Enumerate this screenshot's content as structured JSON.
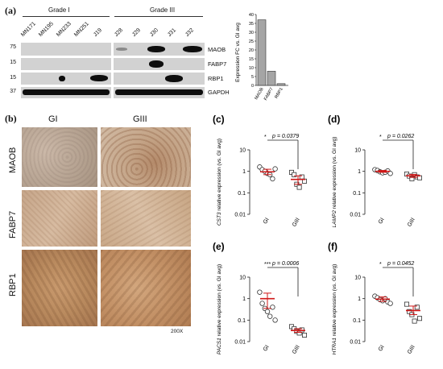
{
  "panel_a": {
    "letter": "(a)",
    "groups": [
      "Grade I",
      "Grade III"
    ],
    "lanes_g1": [
      "MN171",
      "MN195",
      "MN233",
      "MN251",
      "J19"
    ],
    "lanes_g3": [
      "J28",
      "J29",
      "J30",
      "J31",
      "J32"
    ],
    "mw": [
      "75",
      "15",
      "15",
      "37"
    ],
    "blots": [
      "MAOB",
      "FABP7",
      "RBP1",
      "GAPDH"
    ]
  },
  "panel_b": {
    "letter": "(b)",
    "cols": [
      "GI",
      "GIII"
    ],
    "rows": [
      "MAOB",
      "FABP7",
      "RBP1"
    ],
    "magnification": "200X"
  },
  "chart_data": [
    {
      "type": "bar",
      "categories": [
        "MAOB",
        "FABP7",
        "RBP1"
      ],
      "values": [
        37,
        8,
        1
      ],
      "ylabel": "Expression FC vs. GI avg",
      "ylim": [
        0,
        40
      ],
      "yticks": [
        "0",
        "5",
        "10",
        "15",
        "20",
        "25",
        "30",
        "35",
        "40"
      ]
    },
    {
      "type": "scatter",
      "panel": "(c)",
      "ylabel_gene": "CST3",
      "ylabel_rest": " relative expression (vs. GI avg)",
      "categories": [
        "GI",
        "GIII"
      ],
      "stars": "*",
      "pvalue": "p = 0.0379",
      "yticks": [
        "10",
        "1",
        "0.1",
        "0.01"
      ],
      "ylim": [
        0.01,
        10
      ],
      "log": true,
      "series": [
        {
          "points": [
            1.6,
            1.2,
            1.0,
            0.8,
            0.7,
            0.45,
            1.3
          ],
          "mean": 0.95,
          "sem_lo": 0.7,
          "sem_hi": 1.25
        },
        {
          "points": [
            0.9,
            0.7,
            0.25,
            0.18,
            0.55,
            0.35
          ],
          "mean": 0.42,
          "sem_lo": 0.25,
          "sem_hi": 0.62
        }
      ]
    },
    {
      "type": "scatter",
      "panel": "(d)",
      "ylabel_gene": "LAMP2",
      "ylabel_rest": " relative expression (vs. GI avg)",
      "categories": [
        "GI",
        "GIII"
      ],
      "stars": "*",
      "pvalue": "p = 0.0262",
      "yticks": [
        "10",
        "1",
        "0.1",
        "0.01"
      ],
      "ylim": [
        0.01,
        10
      ],
      "log": true,
      "series": [
        {
          "points": [
            1.2,
            1.1,
            0.95,
            0.85,
            0.9,
            1.05,
            0.8
          ],
          "mean": 1.0,
          "sem_lo": 0.9,
          "sem_hi": 1.1
        },
        {
          "points": [
            0.75,
            0.6,
            0.45,
            0.7,
            0.55,
            0.5
          ],
          "mean": 0.62,
          "sem_lo": 0.52,
          "sem_hi": 0.72
        }
      ]
    },
    {
      "type": "scatter",
      "panel": "(e)",
      "ylabel_gene": "PACS1",
      "ylabel_rest": " relative expression (vs. GI avg)",
      "categories": [
        "GI",
        "GIII"
      ],
      "stars": "***",
      "pvalue": "p = 0.0006",
      "yticks": [
        "10",
        "1",
        "0.1",
        "0.01"
      ],
      "ylim": [
        0.01,
        10
      ],
      "log": true,
      "series": [
        {
          "points": [
            2.0,
            0.6,
            0.35,
            0.25,
            0.15,
            0.4,
            0.1
          ],
          "mean": 1.0,
          "sem_lo": 0.35,
          "sem_hi": 1.8
        },
        {
          "points": [
            0.05,
            0.04,
            0.03,
            0.025,
            0.035,
            0.02
          ],
          "mean": 0.033,
          "sem_lo": 0.027,
          "sem_hi": 0.04
        }
      ]
    },
    {
      "type": "scatter",
      "panel": "(f)",
      "ylabel_gene": "HTRA1",
      "ylabel_rest": " relative expression (vs. GI avg)",
      "categories": [
        "GI",
        "GIII"
      ],
      "stars": "*",
      "pvalue": "p = 0.0452",
      "yticks": [
        "10",
        "1",
        "0.1",
        "0.01"
      ],
      "ylim": [
        0.01,
        10
      ],
      "log": true,
      "series": [
        {
          "points": [
            1.3,
            1.1,
            0.9,
            0.8,
            1.0,
            0.7,
            0.6
          ],
          "mean": 0.95,
          "sem_lo": 0.75,
          "sem_hi": 1.2
        },
        {
          "points": [
            0.55,
            0.25,
            0.18,
            0.09,
            0.4,
            0.12
          ],
          "mean": 0.28,
          "sem_lo": 0.18,
          "sem_hi": 0.45
        }
      ]
    }
  ]
}
